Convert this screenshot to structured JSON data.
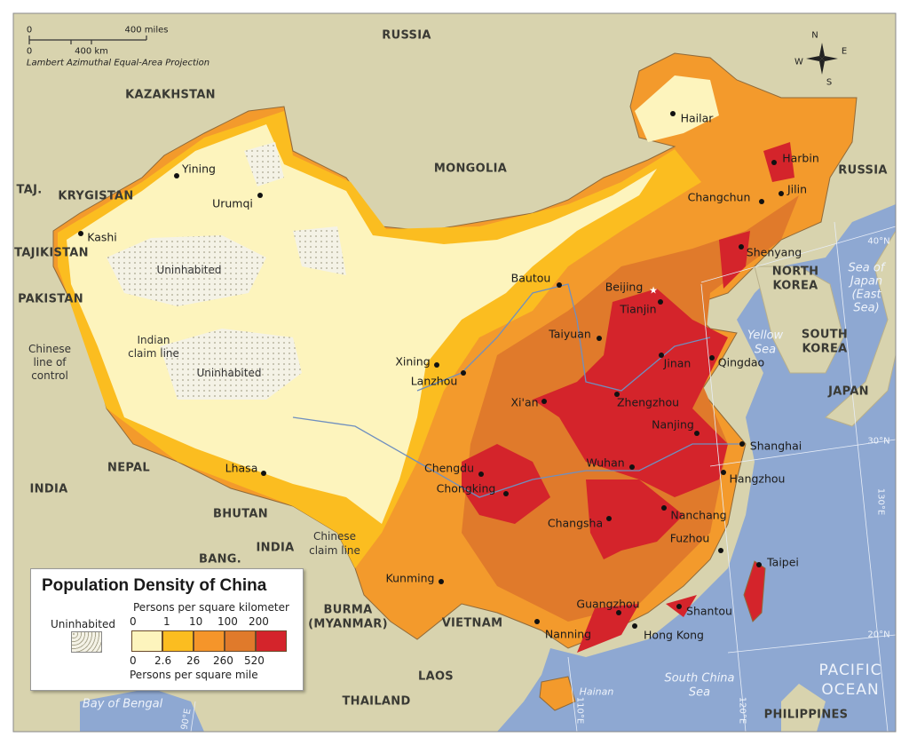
{
  "title": "Population Density of China",
  "scale": {
    "miles_zero": "0",
    "miles_label": "400 miles",
    "km_zero": "0",
    "km_label": "400 km",
    "projection": "Lambert Azimuthal Equal-Area Projection"
  },
  "compass": {
    "n": "N",
    "s": "S",
    "e": "E",
    "w": "W"
  },
  "legend": {
    "title": "Population Density of China",
    "uninhabited": "Uninhabited",
    "km_unit": "Persons per square kilometer",
    "km_ticks": [
      "0",
      "1",
      "10",
      "100",
      "200"
    ],
    "mile_ticks": [
      "0",
      "2.6",
      "26",
      "260",
      "520"
    ],
    "mile_unit": "Persons per square mile",
    "colors": [
      "#fdf4bd",
      "#fbbd20",
      "#f5952a",
      "#e07a2b",
      "#d4242b"
    ]
  },
  "countries": [
    "RUSSIA",
    "KAZAKHSTAN",
    "MONGOLIA",
    "RUSSIA",
    "TAJ.",
    "KRYGISTAN",
    "TAJIKISTAN",
    "PAKISTAN",
    "NORTH",
    "KOREA",
    "SOUTH",
    "KOREA",
    "JAPAN",
    "NEPAL",
    "INDIA",
    "BHUTAN",
    "INDIA",
    "BANG.",
    "BURMA",
    "(MYANMAR)",
    "VIETNAM",
    "LAOS",
    "THAILAND",
    "PHILIPPINES"
  ],
  "waters": [
    "Sea of",
    "Japan",
    "(East",
    "Sea)",
    "Yellow",
    "Sea",
    "South China",
    "Sea",
    "PACIFIC",
    "OCEAN",
    "Bay of Bengal",
    "Hainan"
  ],
  "notes": [
    "Uninhabited",
    "Uninhabited",
    "Indian",
    "claim line",
    "Chinese",
    "line of",
    "control",
    "Chinese",
    "claim line"
  ],
  "gridlines": [
    "40°N",
    "30°N",
    "20°N",
    "130°E",
    "120°E",
    "110°E",
    "90°E"
  ],
  "cities": [
    "Hailar",
    "Harbin",
    "Jilin",
    "Changchun",
    "Shenyang",
    "Beijing",
    "Tianjin",
    "Bautou",
    "Taiyuan",
    "Jinan",
    "Qingdao",
    "Xining",
    "Lanzhou",
    "Xi'an",
    "Zhengzhou",
    "Nanjing",
    "Shanghai",
    "Chengdu",
    "Chongking",
    "Wuhan",
    "Hangzhou",
    "Nanchang",
    "Changsha",
    "Fuzhou",
    "Taipei",
    "Kunming",
    "Guangzhou",
    "Shantou",
    "Nanning",
    "Hong Kong",
    "Lhasa",
    "Yining",
    "Urumqi",
    "Kashi"
  ],
  "colors": {
    "ocean": "#8ea8d2",
    "land": "#d8d3ae",
    "river": "#6f8fbf"
  }
}
